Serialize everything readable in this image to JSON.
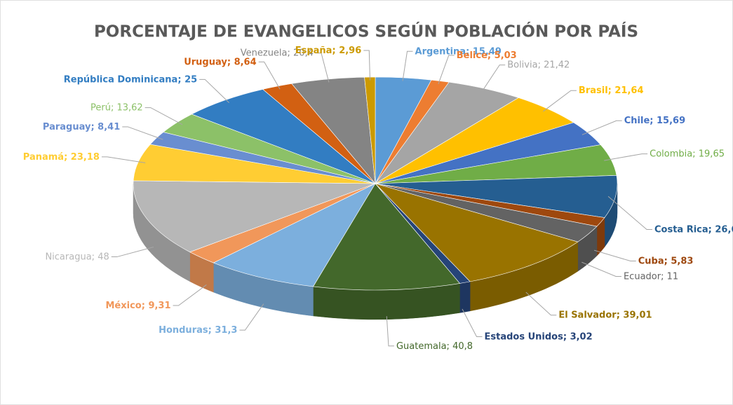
{
  "chart_data": {
    "type": "pie3d",
    "title": "PORCENTAJE  DE EVANGELICOS  SEGÚN POBLACIÓN POR PAÍS",
    "label_separator": "; ",
    "categories": [
      "Argentina",
      "Belice",
      "Bolivia",
      "Brasil",
      "Chile",
      "Colombia",
      "Costa Rica",
      "Cuba",
      "Ecuador",
      "El Salvador",
      "Estados Unidos",
      "Guatemala",
      "Honduras",
      "México",
      "Nicaragua",
      "Panamá",
      "Paraguay",
      "Perú",
      "República Dominicana",
      "Uruguay",
      "Venezuela",
      "España"
    ],
    "values": [
      15.49,
      5.03,
      21.42,
      21.64,
      15.69,
      19.65,
      26.6,
      5.83,
      11,
      39.01,
      3.02,
      40.8,
      31.3,
      9.31,
      48,
      23.18,
      8.41,
      13.62,
      25,
      8.64,
      20.4,
      2.96
    ],
    "value_labels": [
      "15,49",
      "5,03",
      "21,42",
      "21,64",
      "15,69",
      "19,65",
      "26,6",
      "5,83",
      "11",
      "39,01",
      "3,02",
      "40,8",
      "31,3",
      "9,31",
      "48",
      "23,18",
      "8,41",
      "13,62",
      "25",
      "8,64",
      "20,4",
      "2,96"
    ],
    "colors": [
      "#5b9bd5",
      "#ed7d31",
      "#a5a5a5",
      "#ffc000",
      "#4472c4",
      "#70ad47",
      "#255e91",
      "#9e480e",
      "#636363",
      "#997300",
      "#264478",
      "#43682b",
      "#7cafdd",
      "#f1975a",
      "#b7b7b7",
      "#ffcd33",
      "#698ed0",
      "#8cc168",
      "#327dc2",
      "#d26012",
      "#848484",
      "#cc9a00"
    ]
  }
}
